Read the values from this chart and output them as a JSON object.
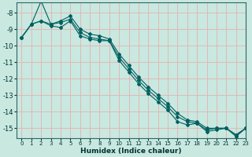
{
  "xlabel": "Humidex (Indice chaleur)",
  "bg_color": "#c8e8e0",
  "grid_color": "#e8b0b0",
  "line_color": "#006060",
  "xlim": [
    -0.5,
    23
  ],
  "ylim": [
    -15.6,
    -7.4
  ],
  "yticks": [
    -8,
    -9,
    -10,
    -11,
    -12,
    -13,
    -14,
    -15
  ],
  "xticks": [
    0,
    1,
    2,
    3,
    4,
    5,
    6,
    7,
    8,
    9,
    10,
    11,
    12,
    13,
    14,
    15,
    16,
    17,
    18,
    19,
    20,
    21,
    22,
    23
  ],
  "series": [
    {
      "x": [
        0,
        1,
        2,
        3,
        4,
        5,
        6,
        7,
        8,
        9,
        10,
        11,
        12,
        13,
        14,
        15,
        16,
        17,
        18,
        19,
        20,
        21,
        22,
        23
      ],
      "y": [
        -9.5,
        -8.7,
        -7.3,
        -8.7,
        -8.5,
        -8.2,
        -9.0,
        -9.3,
        -9.4,
        -9.6,
        -10.5,
        -11.2,
        -11.9,
        -12.5,
        -13.0,
        -13.5,
        -14.1,
        -14.5,
        -14.6,
        -15.0,
        -15.0,
        -15.0,
        -15.4,
        -15.0
      ]
    },
    {
      "x": [
        0,
        1,
        2,
        3,
        4,
        5,
        6,
        7,
        8,
        9,
        10,
        11,
        12,
        13,
        14,
        15,
        16,
        17,
        18,
        19,
        20,
        21,
        22,
        23
      ],
      "y": [
        -9.5,
        -8.7,
        -8.5,
        -8.7,
        -8.6,
        -8.4,
        -9.2,
        -9.5,
        -9.6,
        -9.7,
        -10.7,
        -11.4,
        -12.1,
        -12.7,
        -13.2,
        -13.7,
        -14.3,
        -14.6,
        -14.7,
        -15.1,
        -15.0,
        -15.0,
        -15.4,
        -15.0
      ]
    },
    {
      "x": [
        0,
        1,
        2,
        3,
        4,
        5,
        6,
        7,
        8,
        9,
        10,
        11,
        12,
        13,
        14,
        15,
        16,
        17,
        18,
        19,
        20,
        21,
        22,
        23
      ],
      "y": [
        -9.5,
        -8.7,
        -8.5,
        -8.8,
        -8.9,
        -8.5,
        -9.4,
        -9.6,
        -9.7,
        -9.7,
        -10.9,
        -11.6,
        -12.3,
        -12.9,
        -13.4,
        -13.9,
        -14.6,
        -14.8,
        -14.7,
        -15.2,
        -15.1,
        -15.0,
        -15.5,
        -15.0
      ]
    }
  ]
}
